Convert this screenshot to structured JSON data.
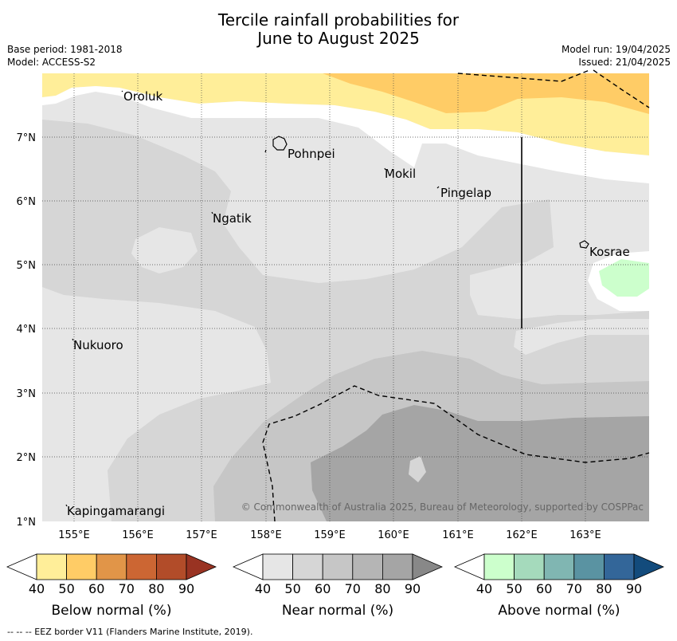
{
  "title": {
    "line1": "Tercile rainfall probabilities for",
    "line2": "June to August 2025"
  },
  "meta": {
    "base_period": "Base period: 1981-2018",
    "model": "Model: ACCESS-S2",
    "model_run": "Model run: 19/04/2025",
    "issued": "Issued: 21/04/2025"
  },
  "axes": {
    "lon_ticks": [
      "155°E",
      "156°E",
      "157°E",
      "158°E",
      "159°E",
      "160°E",
      "161°E",
      "162°E",
      "163°E"
    ],
    "lat_ticks": [
      "7°N",
      "6°N",
      "5°N",
      "4°N",
      "3°N",
      "2°N",
      "1°N"
    ]
  },
  "places": [
    {
      "name": "Oroluk"
    },
    {
      "name": "Pohnpei"
    },
    {
      "name": "Mokil"
    },
    {
      "name": "Pingelap"
    },
    {
      "name": "Ngatik"
    },
    {
      "name": "Kosrae"
    },
    {
      "name": "Nukuoro"
    },
    {
      "name": "Kapingamarangi"
    }
  ],
  "copyright": "© Commonwealth of Australia 2025, Bureau of Meteorology, supported by COSPPac",
  "colorbars": [
    {
      "label": "Below normal (%)",
      "ticks": [
        "40",
        "50",
        "60",
        "70",
        "80",
        "90"
      ],
      "colors": [
        "#ffee99",
        "#ffcc66",
        "#e19548",
        "#cc6633",
        "#b24c29",
        "#993322"
      ]
    },
    {
      "label": "Near normal (%)",
      "ticks": [
        "40",
        "50",
        "60",
        "70",
        "80",
        "90"
      ],
      "colors": [
        "#e6e6e6",
        "#d6d6d6",
        "#c6c6c6",
        "#b5b5b5",
        "#a5a5a5",
        "#888888"
      ]
    },
    {
      "label": "Above normal (%)",
      "ticks": [
        "40",
        "50",
        "60",
        "70",
        "80",
        "90"
      ],
      "colors": [
        "#ccffcc",
        "#a5dabc",
        "#80b6b2",
        "#5a93a2",
        "#336699",
        "#134b7c"
      ]
    }
  ],
  "footer": "--  --  -- EEZ border V11 (Flanders Marine Institute, 2019)."
}
